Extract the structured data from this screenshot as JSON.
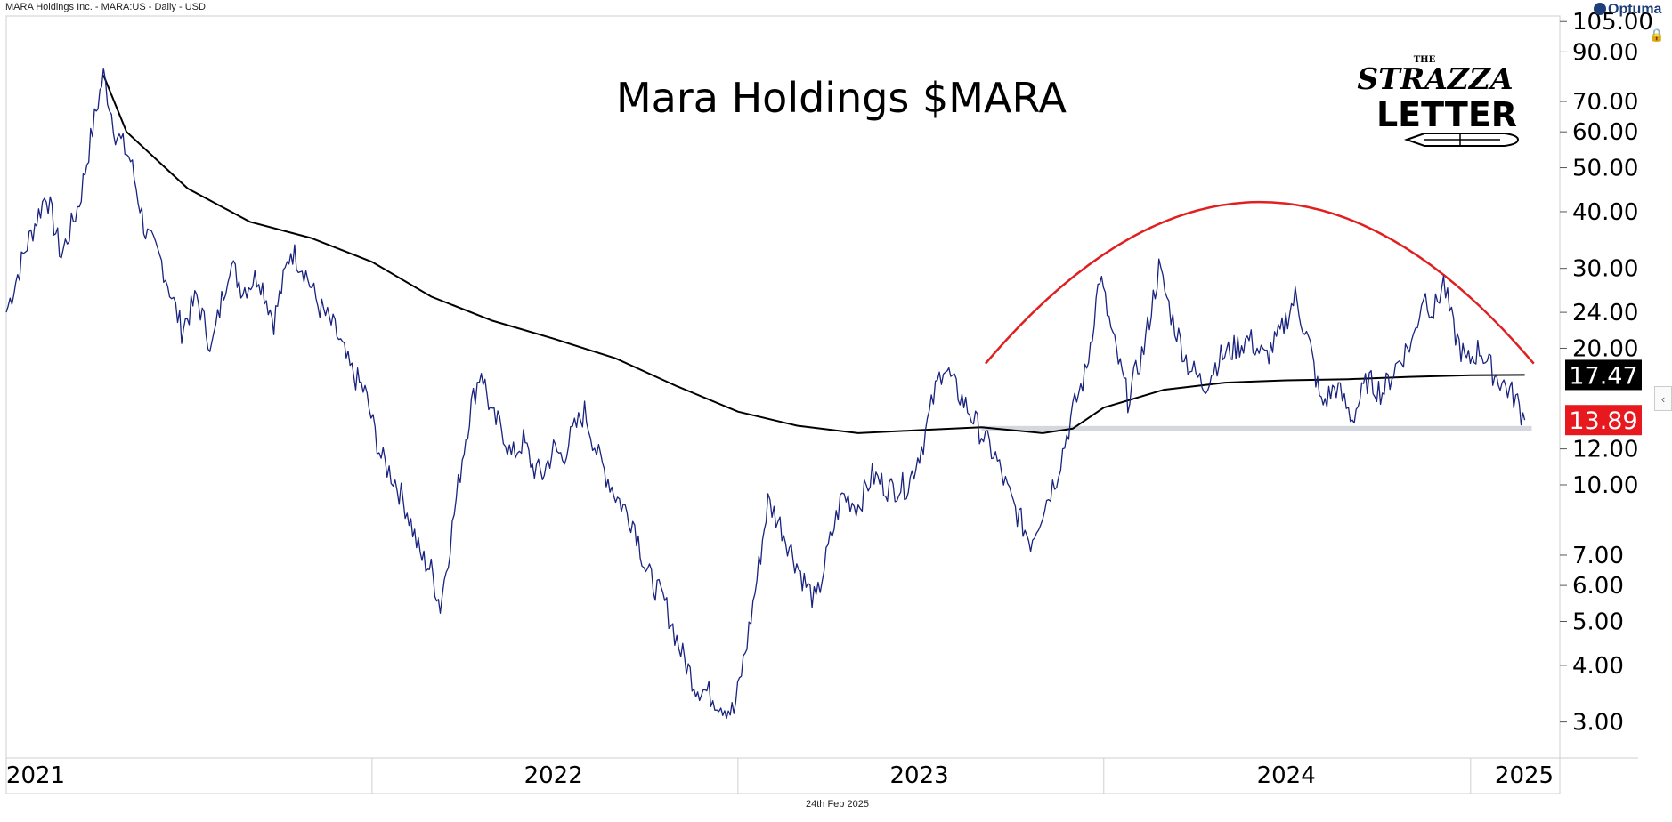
{
  "header": {
    "instrument": "MARA Holdings Inc. - MARA:US - Daily - USD",
    "brand": "Optuma"
  },
  "logo": {
    "line1": "THE",
    "line2": "STRAZZA",
    "line3": "LETTER"
  },
  "footer": {
    "date": "24th Feb 2025"
  },
  "colors": {
    "price": "#1a237e",
    "moving_average": "#000000",
    "arc": "#e02020",
    "support_band": "#d4d8de",
    "last_price_bg": "#e8191e",
    "ma_label_bg": "#000000"
  },
  "chart_data": {
    "type": "line",
    "title": "Mara Holdings $MARA",
    "y_scale": "log",
    "ylim": [
      2.5,
      108
    ],
    "y_ticks": [
      "105.00",
      "90.00",
      "70.00",
      "60.00",
      "50.00",
      "40.00",
      "30.00",
      "24.00",
      "20.00",
      "12.00",
      "10.00",
      "7.00",
      "6.00",
      "5.00",
      "4.00",
      "3.00"
    ],
    "x_labels": [
      "2021",
      "2022",
      "2023",
      "2024",
      "2025"
    ],
    "x_range": [
      "2021-01-01",
      "2025-03-31"
    ],
    "series": [
      {
        "role": "price",
        "points": [
          [
            "2021-01-01",
            24
          ],
          [
            "2021-01-20",
            33
          ],
          [
            "2021-02-10",
            44
          ],
          [
            "2021-02-25",
            32
          ],
          [
            "2021-03-15",
            42
          ],
          [
            "2021-03-30",
            64
          ],
          [
            "2021-04-08",
            80
          ],
          [
            "2021-04-20",
            60
          ],
          [
            "2021-05-05",
            52
          ],
          [
            "2021-05-20",
            36
          ],
          [
            "2021-06-05",
            31
          ],
          [
            "2021-06-25",
            22
          ],
          [
            "2021-07-10",
            26
          ],
          [
            "2021-07-25",
            20
          ],
          [
            "2021-08-12",
            31
          ],
          [
            "2021-08-25",
            27
          ],
          [
            "2021-09-10",
            29
          ],
          [
            "2021-09-25",
            23
          ],
          [
            "2021-10-12",
            33
          ],
          [
            "2021-10-25",
            30
          ],
          [
            "2021-11-08",
            25
          ],
          [
            "2021-11-25",
            22
          ],
          [
            "2021-12-10",
            18
          ],
          [
            "2021-12-25",
            16
          ],
          [
            "2022-01-10",
            11.5
          ],
          [
            "2022-01-24",
            10.2
          ],
          [
            "2022-02-05",
            8.8
          ],
          [
            "2022-02-18",
            7
          ],
          [
            "2022-03-01",
            6.5
          ],
          [
            "2022-03-10",
            5.4
          ],
          [
            "2022-03-20",
            7.5
          ],
          [
            "2022-04-01",
            11.5
          ],
          [
            "2022-04-10",
            15
          ],
          [
            "2022-04-20",
            18
          ],
          [
            "2022-05-01",
            14
          ],
          [
            "2022-05-10",
            13.5
          ],
          [
            "2022-05-20",
            11.5
          ],
          [
            "2022-06-01",
            12.5
          ],
          [
            "2022-06-10",
            11
          ],
          [
            "2022-06-20",
            10.5
          ],
          [
            "2022-07-01",
            12
          ],
          [
            "2022-07-10",
            11.5
          ],
          [
            "2022-07-20",
            13
          ],
          [
            "2022-08-01",
            14.5
          ],
          [
            "2022-08-15",
            11.5
          ],
          [
            "2022-09-01",
            9.5
          ],
          [
            "2022-09-20",
            8.2
          ],
          [
            "2022-10-01",
            6.5
          ],
          [
            "2022-10-20",
            5.5
          ],
          [
            "2022-11-05",
            4.3
          ],
          [
            "2022-11-20",
            3.6
          ],
          [
            "2022-12-01",
            3.5
          ],
          [
            "2022-12-15",
            3.3
          ],
          [
            "2022-12-28",
            3.15
          ],
          [
            "2023-01-10",
            4.5
          ],
          [
            "2023-01-20",
            6.2
          ],
          [
            "2023-01-31",
            9.2
          ],
          [
            "2023-02-12",
            8.2
          ],
          [
            "2023-02-25",
            7
          ],
          [
            "2023-03-10",
            6
          ],
          [
            "2023-03-20",
            5.5
          ],
          [
            "2023-04-01",
            7.2
          ],
          [
            "2023-04-15",
            9.5
          ],
          [
            "2023-05-01",
            9
          ],
          [
            "2023-05-15",
            10.5
          ],
          [
            "2023-06-01",
            9.8
          ],
          [
            "2023-06-20",
            10
          ],
          [
            "2023-07-05",
            12.5
          ],
          [
            "2023-07-15",
            15.5
          ],
          [
            "2023-07-25",
            18.5
          ],
          [
            "2023-08-05",
            16.5
          ],
          [
            "2023-08-20",
            14.5
          ],
          [
            "2023-09-01",
            13
          ],
          [
            "2023-09-15",
            11.5
          ],
          [
            "2023-10-01",
            9.2
          ],
          [
            "2023-10-20",
            7.5
          ],
          [
            "2023-11-01",
            8.8
          ],
          [
            "2023-11-15",
            10.5
          ],
          [
            "2023-12-01",
            14.5
          ],
          [
            "2023-12-15",
            18
          ],
          [
            "2023-12-28",
            29
          ],
          [
            "2024-01-10",
            21
          ],
          [
            "2024-01-25",
            15.5
          ],
          [
            "2024-02-10",
            20
          ],
          [
            "2024-02-25",
            30
          ],
          [
            "2024-03-10",
            23
          ],
          [
            "2024-03-25",
            18.5
          ],
          [
            "2024-04-10",
            16.5
          ],
          [
            "2024-04-25",
            19
          ],
          [
            "2024-05-10",
            20
          ],
          [
            "2024-05-25",
            21
          ],
          [
            "2024-06-10",
            19
          ],
          [
            "2024-06-25",
            21.5
          ],
          [
            "2024-07-10",
            26
          ],
          [
            "2024-07-25",
            20
          ],
          [
            "2024-08-05",
            15
          ],
          [
            "2024-08-20",
            16.5
          ],
          [
            "2024-09-05",
            14
          ],
          [
            "2024-09-20",
            17
          ],
          [
            "2024-10-05",
            16
          ],
          [
            "2024-10-20",
            18.5
          ],
          [
            "2024-11-05",
            21
          ],
          [
            "2024-11-15",
            26.5
          ],
          [
            "2024-11-25",
            24
          ],
          [
            "2024-12-05",
            28
          ],
          [
            "2024-12-15",
            22
          ],
          [
            "2024-12-28",
            18.5
          ],
          [
            "2025-01-10",
            20
          ],
          [
            "2025-01-25",
            17.5
          ],
          [
            "2025-02-05",
            16.5
          ],
          [
            "2025-02-15",
            15.5
          ],
          [
            "2025-02-24",
            13.89
          ]
        ]
      },
      {
        "role": "moving_average",
        "points": [
          [
            "2021-04-08",
            80
          ],
          [
            "2021-05-01",
            60
          ],
          [
            "2021-07-01",
            45
          ],
          [
            "2021-09-01",
            38
          ],
          [
            "2021-11-01",
            35
          ],
          [
            "2022-01-01",
            31
          ],
          [
            "2022-03-01",
            26
          ],
          [
            "2022-05-01",
            23
          ],
          [
            "2022-07-01",
            21
          ],
          [
            "2022-09-01",
            19
          ],
          [
            "2022-11-01",
            16.5
          ],
          [
            "2023-01-01",
            14.5
          ],
          [
            "2023-03-01",
            13.5
          ],
          [
            "2023-05-01",
            13.0
          ],
          [
            "2023-07-01",
            13.2
          ],
          [
            "2023-09-01",
            13.4
          ],
          [
            "2023-11-01",
            13.0
          ],
          [
            "2023-12-01",
            13.3
          ],
          [
            "2024-01-01",
            14.8
          ],
          [
            "2024-03-01",
            16.2
          ],
          [
            "2024-05-01",
            16.8
          ],
          [
            "2024-07-01",
            17.0
          ],
          [
            "2024-09-01",
            17.1
          ],
          [
            "2024-11-01",
            17.3
          ],
          [
            "2025-01-01",
            17.45
          ],
          [
            "2025-02-24",
            17.47
          ]
        ]
      }
    ],
    "annotations": {
      "ma_last_label": "17.47",
      "ma_last_value": 17.47,
      "price_last_label": "13.89",
      "price_last_value": 13.89,
      "support": {
        "value": 13.3,
        "from": "2023-09-01",
        "to": "2025-03-03"
      },
      "arc": {
        "from": "2023-09-05",
        "to": "2025-03-05",
        "base": 18.5,
        "peak": 42
      }
    }
  }
}
